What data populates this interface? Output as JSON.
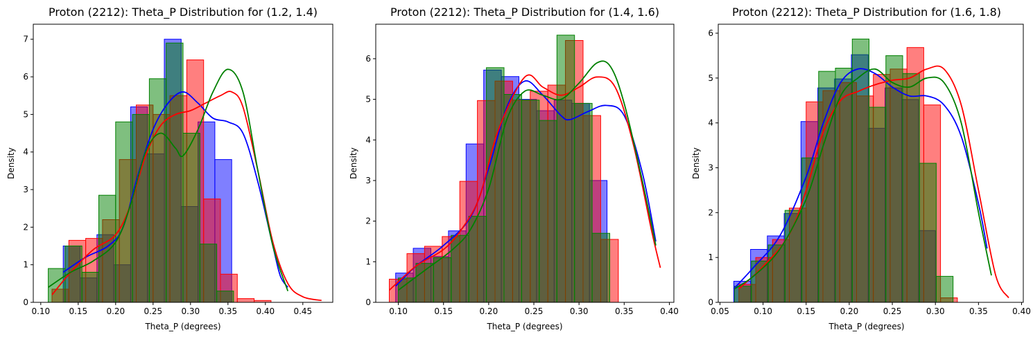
{
  "figure": {
    "colors": {
      "series_a": "#0000ff",
      "series_b": "#ff0000",
      "series_c": "#008000"
    }
  },
  "chart_data": [
    {
      "type": "histogram-kde",
      "title": "Proton (2212): Theta_P Distribution for (1.2, 1.4)",
      "xlabel": "Theta_P (degrees)",
      "ylabel": "Density",
      "xlim": [
        0.09,
        0.49
      ],
      "ylim": [
        0,
        7.4
      ],
      "xticks": [
        0.1,
        0.15,
        0.2,
        0.25,
        0.3,
        0.35,
        0.4,
        0.45
      ],
      "xtick_labels": [
        "0.10",
        "0.15",
        "0.20",
        "0.25",
        "0.30",
        "0.35",
        "0.40",
        "0.45"
      ],
      "yticks": [
        0,
        1,
        2,
        3,
        4,
        5,
        6,
        7
      ],
      "ytick_labels": [
        "0",
        "1",
        "2",
        "3",
        "4",
        "5",
        "6",
        "7"
      ],
      "series": [
        {
          "color": "blue",
          "bin_start": 0.13,
          "bin_width": 0.0225,
          "values": [
            1.5,
            0.65,
            1.8,
            1.0,
            5.2,
            3.95,
            7.0,
            2.55,
            4.8,
            3.8,
            0.0
          ],
          "kde": [
            [
              0.13,
              0.8
            ],
            [
              0.16,
              1.2
            ],
            [
              0.19,
              1.5
            ],
            [
              0.21,
              2.0
            ],
            [
              0.23,
              3.4
            ],
            [
              0.25,
              4.6
            ],
            [
              0.27,
              5.3
            ],
            [
              0.29,
              5.6
            ],
            [
              0.31,
              5.3
            ],
            [
              0.33,
              4.9
            ],
            [
              0.35,
              4.8
            ],
            [
              0.37,
              4.5
            ],
            [
              0.39,
              3.2
            ],
            [
              0.41,
              1.5
            ],
            [
              0.42,
              0.7
            ],
            [
              0.43,
              0.4
            ]
          ]
        },
        {
          "color": "red",
          "bin_start": 0.115,
          "bin_width": 0.0225,
          "values": [
            0.35,
            1.65,
            1.7,
            2.2,
            3.8,
            5.25,
            5.0,
            5.5,
            6.45,
            2.75,
            0.75,
            0.1,
            0.05
          ],
          "kde": [
            [
              0.115,
              0.2
            ],
            [
              0.14,
              0.8
            ],
            [
              0.17,
              1.4
            ],
            [
              0.2,
              1.8
            ],
            [
              0.22,
              2.6
            ],
            [
              0.24,
              3.9
            ],
            [
              0.26,
              4.7
            ],
            [
              0.28,
              5.0
            ],
            [
              0.3,
              5.1
            ],
            [
              0.32,
              5.3
            ],
            [
              0.34,
              5.5
            ],
            [
              0.355,
              5.6
            ],
            [
              0.37,
              5.2
            ],
            [
              0.39,
              3.5
            ],
            [
              0.41,
              1.6
            ],
            [
              0.43,
              0.5
            ],
            [
              0.45,
              0.15
            ],
            [
              0.475,
              0.05
            ]
          ]
        },
        {
          "color": "green",
          "bin_start": 0.11,
          "bin_width": 0.0225,
          "values": [
            0.9,
            1.5,
            0.8,
            2.85,
            4.8,
            5.0,
            5.95,
            6.9,
            4.5,
            1.55,
            0.3
          ],
          "kde": [
            [
              0.11,
              0.4
            ],
            [
              0.14,
              0.8
            ],
            [
              0.17,
              1.1
            ],
            [
              0.2,
              1.6
            ],
            [
              0.22,
              2.6
            ],
            [
              0.24,
              4.0
            ],
            [
              0.26,
              4.5
            ],
            [
              0.28,
              4.1
            ],
            [
              0.29,
              3.9
            ],
            [
              0.31,
              4.6
            ],
            [
              0.33,
              5.6
            ],
            [
              0.35,
              6.2
            ],
            [
              0.37,
              5.6
            ],
            [
              0.39,
              3.5
            ],
            [
              0.41,
              1.5
            ],
            [
              0.43,
              0.3
            ]
          ]
        }
      ]
    },
    {
      "type": "histogram-kde",
      "title": "Proton (2212): Theta_P Distribution for (1.4, 1.6)",
      "xlabel": "Theta_P (degrees)",
      "ylabel": "Density",
      "xlim": [
        0.075,
        0.405
      ],
      "ylim": [
        0,
        6.85
      ],
      "xticks": [
        0.1,
        0.15,
        0.2,
        0.25,
        0.3,
        0.35,
        0.4
      ],
      "xtick_labels": [
        "0.10",
        "0.15",
        "0.20",
        "0.25",
        "0.30",
        "0.35",
        "0.40"
      ],
      "yticks": [
        0,
        1,
        2,
        3,
        4,
        5,
        6
      ],
      "ytick_labels": [
        "0",
        "1",
        "2",
        "3",
        "4",
        "5",
        "6"
      ],
      "series": [
        {
          "color": "blue",
          "bin_start": 0.097,
          "bin_width": 0.0195,
          "values": [
            0.72,
            1.33,
            1.13,
            1.76,
            3.9,
            5.72,
            5.56,
            5.0,
            4.72,
            4.98,
            4.9,
            3.0
          ],
          "kde": [
            [
              0.097,
              0.4
            ],
            [
              0.12,
              0.9
            ],
            [
              0.15,
              1.4
            ],
            [
              0.18,
              2.1
            ],
            [
              0.2,
              3.3
            ],
            [
              0.22,
              4.8
            ],
            [
              0.24,
              5.45
            ],
            [
              0.26,
              5.1
            ],
            [
              0.28,
              4.6
            ],
            [
              0.29,
              4.5
            ],
            [
              0.31,
              4.7
            ],
            [
              0.33,
              4.85
            ],
            [
              0.35,
              4.6
            ],
            [
              0.37,
              3.2
            ],
            [
              0.385,
              1.5
            ]
          ]
        },
        {
          "color": "red",
          "bin_start": 0.09,
          "bin_width": 0.0195,
          "values": [
            0.57,
            1.2,
            1.38,
            1.62,
            2.98,
            4.97,
            5.45,
            4.98,
            5.2,
            5.35,
            6.45,
            4.6,
            1.55
          ],
          "kde": [
            [
              0.09,
              0.3
            ],
            [
              0.12,
              0.9
            ],
            [
              0.15,
              1.3
            ],
            [
              0.17,
              1.8
            ],
            [
              0.19,
              2.6
            ],
            [
              0.21,
              4.2
            ],
            [
              0.24,
              5.55
            ],
            [
              0.26,
              5.3
            ],
            [
              0.28,
              5.1
            ],
            [
              0.3,
              5.3
            ],
            [
              0.32,
              5.55
            ],
            [
              0.34,
              5.3
            ],
            [
              0.36,
              3.9
            ],
            [
              0.38,
              1.8
            ],
            [
              0.39,
              0.85
            ]
          ]
        },
        {
          "color": "green",
          "bin_start": 0.1,
          "bin_width": 0.0195,
          "values": [
            0.6,
            0.96,
            1.1,
            1.65,
            2.12,
            5.78,
            5.12,
            4.98,
            4.48,
            6.58,
            4.9,
            1.7
          ],
          "kde": [
            [
              0.1,
              0.3
            ],
            [
              0.13,
              0.8
            ],
            [
              0.16,
              1.3
            ],
            [
              0.18,
              1.8
            ],
            [
              0.2,
              2.8
            ],
            [
              0.22,
              4.5
            ],
            [
              0.24,
              5.2
            ],
            [
              0.26,
              5.1
            ],
            [
              0.28,
              5.0
            ],
            [
              0.3,
              5.4
            ],
            [
              0.32,
              5.9
            ],
            [
              0.335,
              5.8
            ],
            [
              0.35,
              4.9
            ],
            [
              0.37,
              3.0
            ],
            [
              0.385,
              1.4
            ]
          ]
        }
      ]
    },
    {
      "type": "histogram-kde",
      "title": "Proton (2212): Theta_P Distribution for (1.6, 1.8)",
      "xlabel": "Theta_P (degrees)",
      "ylabel": "Density",
      "xlim": [
        0.048,
        0.402
      ],
      "ylim": [
        0,
        6.2
      ],
      "xticks": [
        0.05,
        0.1,
        0.15,
        0.2,
        0.25,
        0.3,
        0.35,
        0.4
      ],
      "xtick_labels": [
        "0.05",
        "0.10",
        "0.15",
        "0.20",
        "0.25",
        "0.30",
        "0.35",
        "0.40"
      ],
      "yticks": [
        0,
        1,
        2,
        3,
        4,
        5,
        6
      ],
      "ytick_labels": [
        "0",
        "1",
        "2",
        "3",
        "4",
        "5",
        "6"
      ],
      "series": [
        {
          "color": "blue",
          "bin_start": 0.066,
          "bin_width": 0.0195,
          "values": [
            0.47,
            1.18,
            1.48,
            1.98,
            4.03,
            4.78,
            4.98,
            5.52,
            3.88,
            4.78,
            4.52,
            1.6
          ],
          "kde": [
            [
              0.066,
              0.3
            ],
            [
              0.09,
              0.8
            ],
            [
              0.12,
              1.5
            ],
            [
              0.15,
              2.8
            ],
            [
              0.17,
              4.0
            ],
            [
              0.19,
              4.9
            ],
            [
              0.21,
              5.2
            ],
            [
              0.23,
              5.1
            ],
            [
              0.25,
              4.8
            ],
            [
              0.27,
              4.6
            ],
            [
              0.29,
              4.6
            ],
            [
              0.31,
              4.4
            ],
            [
              0.33,
              3.7
            ],
            [
              0.35,
              2.2
            ],
            [
              0.36,
              1.2
            ]
          ]
        },
        {
          "color": "red",
          "bin_start": 0.072,
          "bin_width": 0.0195,
          "values": [
            0.4,
            1.0,
            1.4,
            2.1,
            4.47,
            4.72,
            4.9,
            4.6,
            5.08,
            5.2,
            5.68,
            4.4,
            0.1
          ],
          "kde": [
            [
              0.072,
              0.3
            ],
            [
              0.1,
              0.8
            ],
            [
              0.13,
              1.5
            ],
            [
              0.15,
              2.5
            ],
            [
              0.17,
              3.8
            ],
            [
              0.19,
              4.5
            ],
            [
              0.21,
              4.7
            ],
            [
              0.23,
              4.85
            ],
            [
              0.25,
              4.95
            ],
            [
              0.27,
              5.0
            ],
            [
              0.29,
              5.2
            ],
            [
              0.31,
              5.2
            ],
            [
              0.33,
              4.4
            ],
            [
              0.35,
              2.5
            ],
            [
              0.37,
              0.6
            ],
            [
              0.385,
              0.1
            ]
          ]
        },
        {
          "color": "green",
          "bin_start": 0.067,
          "bin_width": 0.0195,
          "values": [
            0.36,
            0.92,
            1.28,
            2.05,
            3.22,
            5.15,
            5.22,
            5.87,
            4.35,
            5.5,
            5.1,
            3.1,
            0.58
          ],
          "kde": [
            [
              0.067,
              0.3
            ],
            [
              0.09,
              0.6
            ],
            [
              0.12,
              1.2
            ],
            [
              0.15,
              2.3
            ],
            [
              0.17,
              3.5
            ],
            [
              0.19,
              4.6
            ],
            [
              0.21,
              5.0
            ],
            [
              0.23,
              5.2
            ],
            [
              0.25,
              4.9
            ],
            [
              0.27,
              4.8
            ],
            [
              0.29,
              5.0
            ],
            [
              0.31,
              4.9
            ],
            [
              0.33,
              4.0
            ],
            [
              0.35,
              2.0
            ],
            [
              0.365,
              0.6
            ]
          ]
        }
      ]
    }
  ]
}
